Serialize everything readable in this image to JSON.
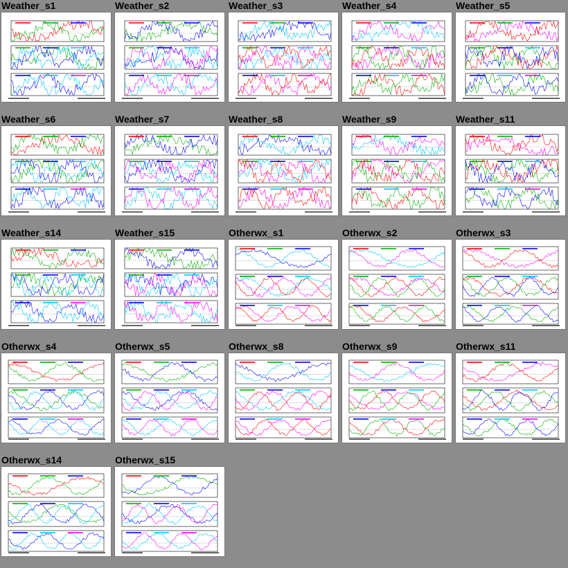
{
  "gallery": {
    "items": [
      {
        "title": "Weather_s1",
        "type": "weather"
      },
      {
        "title": "Weather_s2",
        "type": "weather"
      },
      {
        "title": "Weather_s3",
        "type": "weather"
      },
      {
        "title": "Weather_s4",
        "type": "weather"
      },
      {
        "title": "Weather_s5",
        "type": "weather"
      },
      {
        "title": "Weather_s6",
        "type": "weather"
      },
      {
        "title": "Weather_s7",
        "type": "weather"
      },
      {
        "title": "Weather_s8",
        "type": "weather"
      },
      {
        "title": "Weather_s9",
        "type": "weather"
      },
      {
        "title": "Weather_s11",
        "type": "weather"
      },
      {
        "title": "Weather_s14",
        "type": "weather"
      },
      {
        "title": "Weather_s15",
        "type": "weather"
      },
      {
        "title": "Otherwx_s1",
        "type": "otherwx"
      },
      {
        "title": "Otherwx_s2",
        "type": "otherwx"
      },
      {
        "title": "Otherwx_s3",
        "type": "otherwx"
      },
      {
        "title": "Otherwx_s4",
        "type": "otherwx"
      },
      {
        "title": "Otherwx_s5",
        "type": "otherwx"
      },
      {
        "title": "Otherwx_s8",
        "type": "otherwx"
      },
      {
        "title": "Otherwx_s9",
        "type": "otherwx"
      },
      {
        "title": "Otherwx_s11",
        "type": "otherwx"
      },
      {
        "title": "Otherwx_s14",
        "type": "otherwx"
      },
      {
        "title": "Otherwx_s15",
        "type": "otherwx"
      }
    ]
  },
  "colors": {
    "background": "#8c8c8c",
    "series": [
      "#ff0000",
      "#00b000",
      "#0000ff",
      "#00c8ff",
      "#ff00ff",
      "#b0b0b0",
      "#000000"
    ]
  }
}
